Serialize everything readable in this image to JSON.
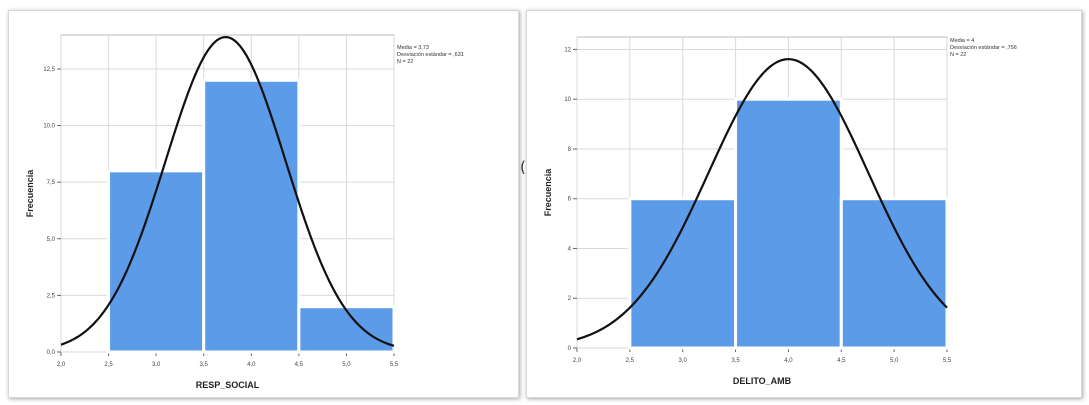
{
  "colors": {
    "bar": "#5b9be8",
    "bar_edge": "#ffffff",
    "curve": "#111111",
    "grid": "#d9d9d9",
    "axis": "#666666"
  },
  "stray_mark": "(",
  "chart_data": [
    {
      "type": "bar",
      "title": "",
      "xlabel": "RESP_SOCIAL",
      "ylabel": "Frecuencia",
      "bins": [
        [
          2.5,
          3.5
        ],
        [
          3.5,
          4.5
        ],
        [
          4.5,
          5.5
        ]
      ],
      "values": [
        8,
        12,
        2
      ],
      "xlim": [
        2.0,
        5.5
      ],
      "ylim": [
        0,
        14
      ],
      "x_ticks": [
        {
          "v": 2.0,
          "label": "2,0"
        },
        {
          "v": 2.5,
          "label": "2,5"
        },
        {
          "v": 3.0,
          "label": "3,0"
        },
        {
          "v": 3.5,
          "label": "3,5"
        },
        {
          "v": 4.0,
          "label": "4,0"
        },
        {
          "v": 4.5,
          "label": "4,5"
        },
        {
          "v": 5.0,
          "label": "5,0"
        },
        {
          "v": 5.5,
          "label": "5,5"
        }
      ],
      "y_ticks": [
        {
          "v": 0,
          "label": "0,0"
        },
        {
          "v": 2.5,
          "label": "2,5"
        },
        {
          "v": 5,
          "label": "5,0"
        },
        {
          "v": 7.5,
          "label": "7,5"
        },
        {
          "v": 10,
          "label": "10,0"
        },
        {
          "v": 12.5,
          "label": "12,5"
        }
      ],
      "grid": true,
      "normal_curve": {
        "mean": 3.73,
        "sd": 0.631,
        "n": 22
      },
      "legend": [
        "Media = 3,73",
        "Desviación estándar = ,631",
        "N = 22"
      ],
      "legend_position": "top-right"
    },
    {
      "type": "bar",
      "title": "",
      "xlabel": "DELITO_AMB",
      "ylabel": "Frecuencia",
      "bins": [
        [
          2.5,
          3.5
        ],
        [
          3.5,
          4.5
        ],
        [
          4.5,
          5.5
        ]
      ],
      "values": [
        6,
        10,
        6
      ],
      "xlim": [
        2.0,
        5.5
      ],
      "ylim": [
        0,
        12.5
      ],
      "x_ticks": [
        {
          "v": 2.0,
          "label": "2,0"
        },
        {
          "v": 2.5,
          "label": "2,5"
        },
        {
          "v": 3.0,
          "label": "3,0"
        },
        {
          "v": 3.5,
          "label": "3,5"
        },
        {
          "v": 4.0,
          "label": "4,0"
        },
        {
          "v": 4.5,
          "label": "4,5"
        },
        {
          "v": 5.0,
          "label": "5,0"
        },
        {
          "v": 5.5,
          "label": "5,5"
        }
      ],
      "y_ticks": [
        {
          "v": 0,
          "label": "0"
        },
        {
          "v": 2,
          "label": "2"
        },
        {
          "v": 4,
          "label": "4"
        },
        {
          "v": 6,
          "label": "6"
        },
        {
          "v": 8,
          "label": "8"
        },
        {
          "v": 10,
          "label": "10"
        },
        {
          "v": 12,
          "label": "12"
        }
      ],
      "grid": true,
      "normal_curve": {
        "mean": 4,
        "sd": 0.756,
        "n": 22
      },
      "legend": [
        "Media = 4",
        "Desviación estándar = ,756",
        "N = 22"
      ],
      "legend_position": "top-right"
    }
  ]
}
